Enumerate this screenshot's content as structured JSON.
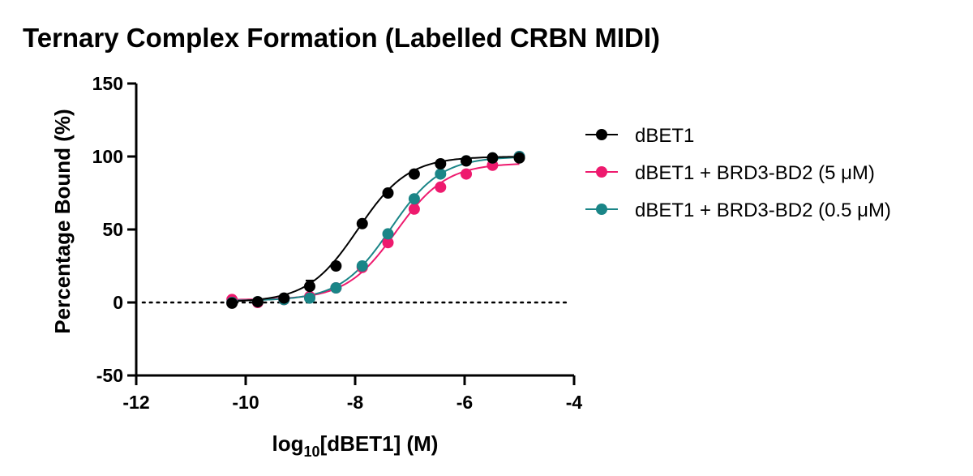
{
  "chart_data": {
    "type": "scatter",
    "title": "Ternary Complex Formation (Labelled CRBN MIDI)",
    "xlabel": {
      "prefix": "log",
      "subscript": "10",
      "suffix": "[dBET1] (M)"
    },
    "ylabel": "Percentage Bound (%)",
    "xlim": [
      -12,
      -4
    ],
    "ylim": [
      -50,
      150
    ],
    "x_ticks": [
      -12,
      -10,
      -8,
      -6,
      -4
    ],
    "x_tick_labels": [
      "-12",
      "-10",
      "-8",
      "-6",
      "-4"
    ],
    "y_ticks": [
      -50,
      0,
      50,
      100,
      150
    ],
    "y_tick_labels": [
      "-50",
      "0",
      "50",
      "100",
      "150"
    ],
    "reference_line": {
      "y": 0,
      "style": "dotted",
      "x_range": [
        -12,
        -4
      ]
    },
    "legend_position": "right",
    "series": [
      {
        "name": "dBET1",
        "color": "#000000",
        "x": [
          -10.25,
          -9.78,
          -9.3,
          -8.83,
          -8.35,
          -7.87,
          -7.4,
          -6.92,
          -6.44,
          -5.97,
          -5.49,
          -5.0
        ],
        "y": [
          -0.5,
          0.5,
          3,
          11,
          25,
          54,
          75,
          88,
          95,
          97,
          99,
          99
        ],
        "error": [
          0,
          0,
          0,
          4,
          0,
          0,
          0,
          0,
          0,
          0,
          0,
          0
        ],
        "fit": {
          "model": "sigmoid",
          "bottom": 0.2,
          "top": 100,
          "logEC50": -7.95,
          "hill": 0.95
        }
      },
      {
        "name": "dBET1 + BRD3-BD2 (5 μM)",
        "color": "#EE1A6E",
        "x": [
          -10.25,
          -9.78,
          -9.3,
          -8.83,
          -8.35,
          -7.87,
          -7.4,
          -6.92,
          -6.44,
          -5.97,
          -5.49,
          -5.0
        ],
        "y": [
          2,
          0,
          2,
          4,
          10,
          24,
          41,
          64,
          79,
          88,
          94,
          100
        ],
        "error": [
          0,
          0,
          0,
          0,
          0,
          0,
          0,
          0,
          0,
          0,
          0,
          0
        ],
        "fit": {
          "model": "sigmoid",
          "bottom": 1.8,
          "top": 95.5,
          "logEC50": -7.25,
          "hill": 0.95
        }
      },
      {
        "name": "dBET1 + BRD3-BD2 (0.5 μM)",
        "color": "#1A8587",
        "x": [
          -10.25,
          -9.78,
          -9.3,
          -8.83,
          -8.35,
          -7.87,
          -7.4,
          -6.92,
          -6.44,
          -5.97,
          -5.49,
          -5.0
        ],
        "y": [
          0,
          0.5,
          2,
          3,
          10,
          25,
          47,
          71,
          88,
          97,
          99,
          100
        ],
        "error": [
          0,
          0,
          0,
          0,
          0,
          0,
          0,
          0,
          0,
          0,
          0,
          0
        ],
        "fit": {
          "model": "sigmoid",
          "bottom": 1.2,
          "top": 100,
          "logEC50": -7.35,
          "hill": 0.95
        }
      }
    ]
  }
}
